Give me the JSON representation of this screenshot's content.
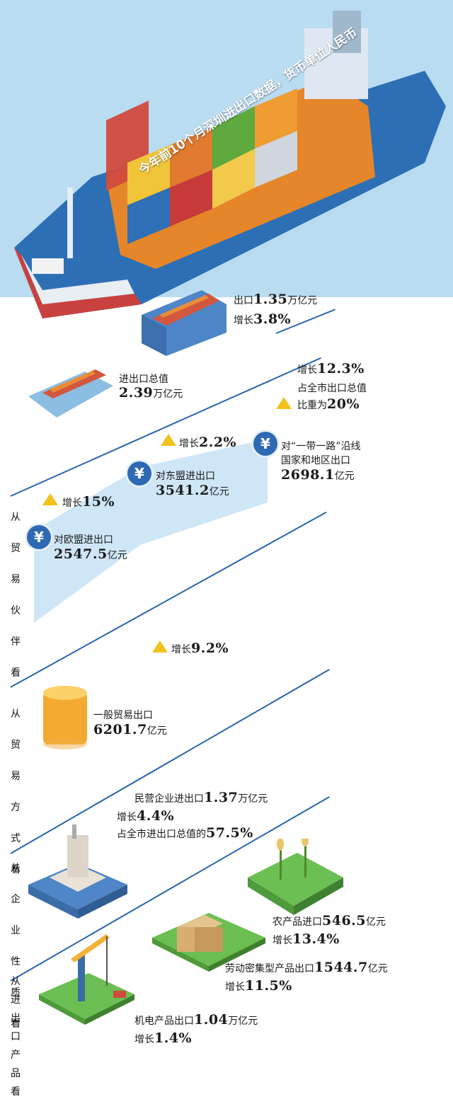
{
  "banner": "今年前10个月深圳进出口数据，货币单位人民币",
  "export": {
    "label": "出口",
    "value": "1.35",
    "unit": "万亿元",
    "growth_label": "增长",
    "growth": "3.8%"
  },
  "total": {
    "label": "进出口总值",
    "value": "2.39",
    "unit": "万亿元"
  },
  "belt_growth": {
    "label": "增长",
    "value": "12.3%",
    "share_label1": "占全市出口总值",
    "share_label2": "比重为",
    "share": "20%"
  },
  "asean_growth": {
    "label": "增长",
    "value": "2.2%"
  },
  "belt": {
    "label1": "对“一带一路”沿线",
    "label2": "国家和地区出口",
    "value": "2698.1",
    "unit": "亿元"
  },
  "asean": {
    "label": "对东盟进出口",
    "value": "3541.2",
    "unit": "亿元"
  },
  "eu_growth": {
    "label": "增长",
    "value": "15%"
  },
  "eu": {
    "label": "对欧盟进出口",
    "value": "2547.5",
    "unit": "亿元"
  },
  "general_growth": {
    "label": "增长",
    "value": "9.2%"
  },
  "general": {
    "label": "一般贸易出口",
    "value": "6201.7",
    "unit": "亿元"
  },
  "private": {
    "label": "民营企业进出口",
    "value": "1.37",
    "unit": "万亿元",
    "growth_label": "增长",
    "growth": "4.4%",
    "share_label": "占全市进出口总值的",
    "share": "57.5%"
  },
  "agri": {
    "label": "农产品进口",
    "value": "546.5",
    "unit": "亿元",
    "growth_label": "增长",
    "growth": "13.4%"
  },
  "labor": {
    "label": "劳动密集型产品出口",
    "value": "1544.7",
    "unit": "亿元",
    "growth_label": "增长",
    "growth": "11.5%"
  },
  "mech": {
    "label": "机电产品出口",
    "value": "1.04",
    "unit": "万亿元",
    "growth_label": "增长",
    "growth": "1.4%"
  },
  "side": {
    "partner": [
      "从",
      "贸",
      "易",
      "伙",
      "伴",
      "看"
    ],
    "mode": [
      "从",
      "贸",
      "易",
      "方",
      "式",
      "看"
    ],
    "enterprise": [
      "从",
      "企",
      "业",
      "性",
      "质",
      "看"
    ],
    "product": [
      "从",
      "进",
      "出",
      "口",
      "产",
      "品",
      "看"
    ]
  },
  "yuan_symbol": "¥",
  "colors": {
    "accent_blue": "#2a64ad",
    "triangle": "#f1c21c",
    "ship_red": "#c9413e"
  }
}
